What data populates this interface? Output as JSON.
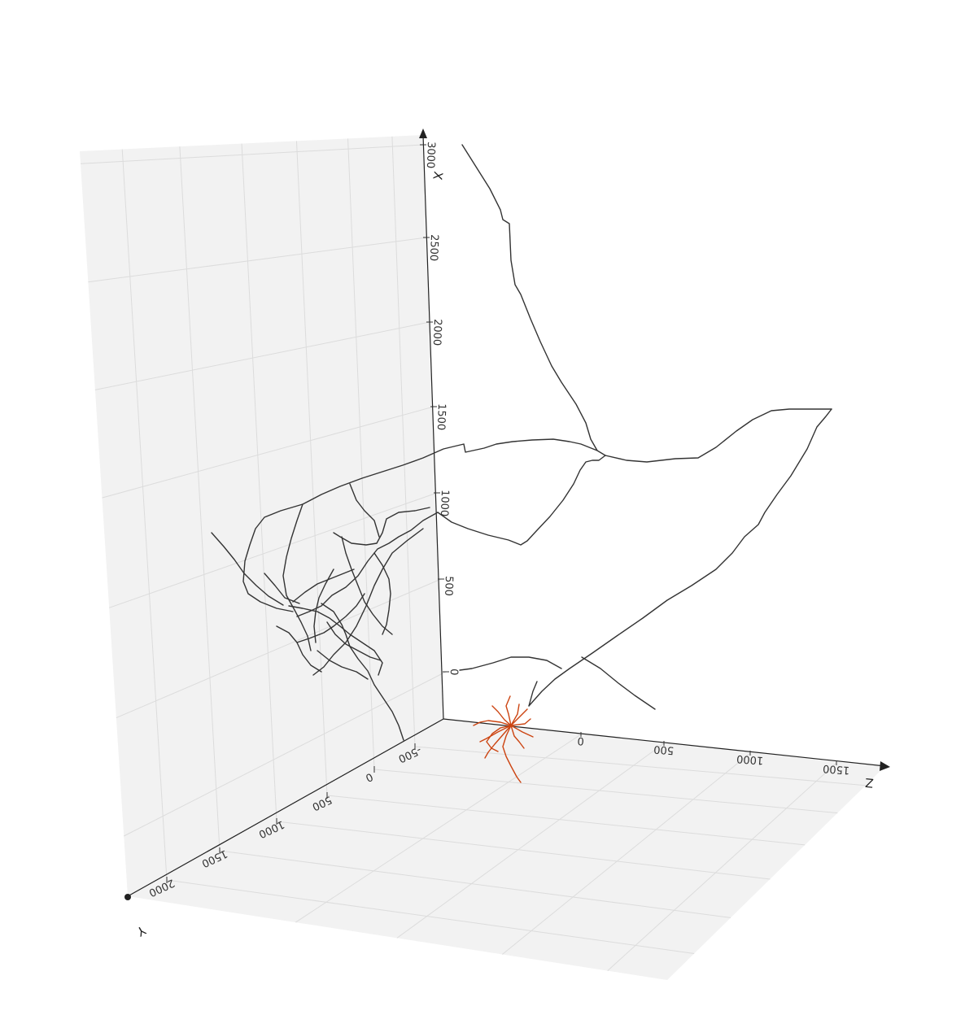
{
  "chart_data": {
    "type": "line",
    "title": "",
    "axes": {
      "x": {
        "label": "X",
        "ticks": [
          "0",
          "500",
          "1000",
          "1500",
          "2000",
          "2500",
          "3000"
        ],
        "range": [
          0,
          3000
        ]
      },
      "y": {
        "label": "Y",
        "ticks": [
          "-500",
          "0",
          "500",
          "1000",
          "1500",
          "2000"
        ],
        "range": [
          -500,
          2200
        ]
      },
      "z": {
        "label": "Z",
        "ticks": [
          "0",
          "500",
          "1000",
          "1500"
        ],
        "range": [
          -500,
          1700
        ]
      }
    },
    "grid": true,
    "background": {
      "pane": "#f2f2f2",
      "grid": "#dcdcdc"
    },
    "series": [
      {
        "color": "#333333"
      },
      {
        "color": "#cc4411"
      }
    ]
  }
}
